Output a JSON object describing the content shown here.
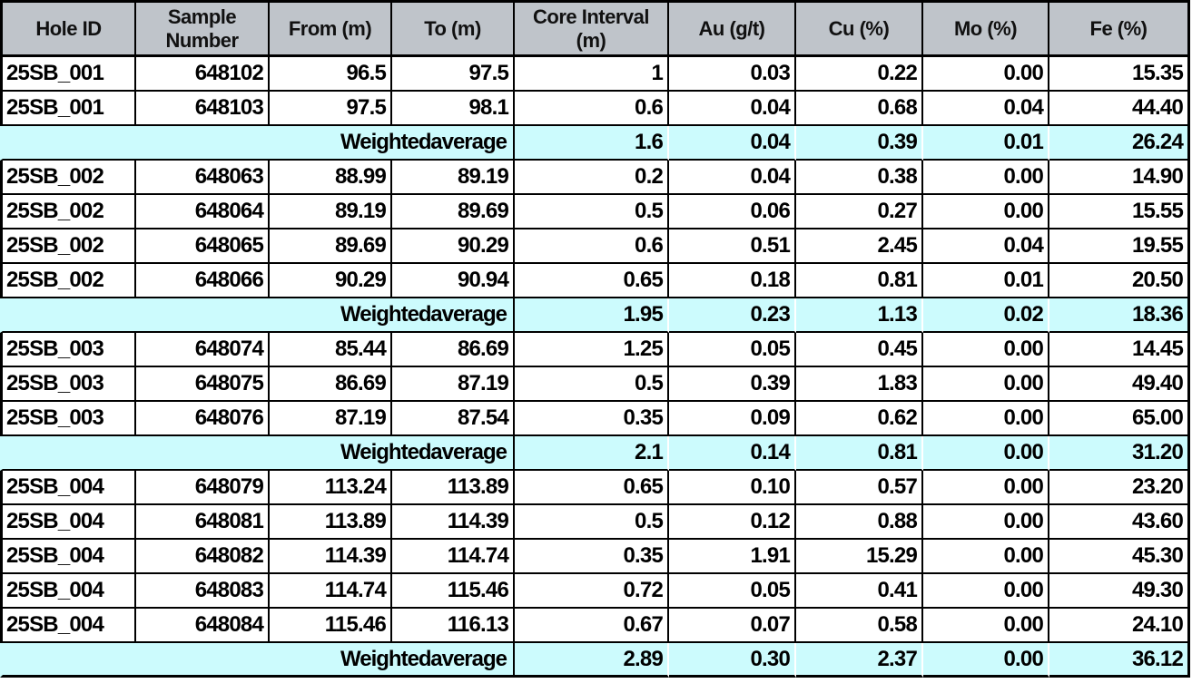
{
  "table": {
    "columns": [
      "Hole ID",
      "Sample\nNumber",
      "From (m)",
      "To (m)",
      "Core Interval\n(m)",
      "Au (g/t)",
      "Cu (%)",
      "Mo (%)",
      "Fe (%)"
    ],
    "weighted_average_label": "Weighted average",
    "sections": [
      {
        "hole_id": "25SB_001",
        "rows": [
          [
            "25SB_001",
            "648102",
            "96.5",
            "97.5",
            "1",
            "0.03",
            "0.22",
            "0.00",
            "15.35"
          ],
          [
            "25SB_001",
            "648103",
            "97.5",
            "98.1",
            "0.6",
            "0.04",
            "0.68",
            "0.04",
            "44.40"
          ]
        ],
        "weighted_average": [
          "1.6",
          "0.04",
          "0.39",
          "0.01",
          "26.24"
        ]
      },
      {
        "hole_id": "25SB_002",
        "rows": [
          [
            "25SB_002",
            "648063",
            "88.99",
            "89.19",
            "0.2",
            "0.04",
            "0.38",
            "0.00",
            "14.90"
          ],
          [
            "25SB_002",
            "648064",
            "89.19",
            "89.69",
            "0.5",
            "0.06",
            "0.27",
            "0.00",
            "15.55"
          ],
          [
            "25SB_002",
            "648065",
            "89.69",
            "90.29",
            "0.6",
            "0.51",
            "2.45",
            "0.04",
            "19.55"
          ],
          [
            "25SB_002",
            "648066",
            "90.29",
            "90.94",
            "0.65",
            "0.18",
            "0.81",
            "0.01",
            "20.50"
          ]
        ],
        "weighted_average": [
          "1.95",
          "0.23",
          "1.13",
          "0.02",
          "18.36"
        ]
      },
      {
        "hole_id": "25SB_003",
        "rows": [
          [
            "25SB_003",
            "648074",
            "85.44",
            "86.69",
            "1.25",
            "0.05",
            "0.45",
            "0.00",
            "14.45"
          ],
          [
            "25SB_003",
            "648075",
            "86.69",
            "87.19",
            "0.5",
            "0.39",
            "1.83",
            "0.00",
            "49.40"
          ],
          [
            "25SB_003",
            "648076",
            "87.19",
            "87.54",
            "0.35",
            "0.09",
            "0.62",
            "0.00",
            "65.00"
          ]
        ],
        "weighted_average": [
          "2.1",
          "0.14",
          "0.81",
          "0.00",
          "31.20"
        ]
      },
      {
        "hole_id": "25SB_004",
        "rows": [
          [
            "25SB_004",
            "648079",
            "113.24",
            "113.89",
            "0.65",
            "0.10",
            "0.57",
            "0.00",
            "23.20"
          ],
          [
            "25SB_004",
            "648081",
            "113.89",
            "114.39",
            "0.5",
            "0.12",
            "0.88",
            "0.00",
            "43.60"
          ],
          [
            "25SB_004",
            "648082",
            "114.39",
            "114.74",
            "0.35",
            "1.91",
            "15.29",
            "0.00",
            "45.30"
          ],
          [
            "25SB_004",
            "648083",
            "114.74",
            "115.46",
            "0.72",
            "0.05",
            "0.41",
            "0.00",
            "49.30"
          ],
          [
            "25SB_004",
            "648084",
            "115.46",
            "116.13",
            "0.67",
            "0.07",
            "0.58",
            "0.00",
            "24.10"
          ]
        ],
        "weighted_average": [
          "2.89",
          "0.30",
          "2.37",
          "0.00",
          "36.12"
        ]
      }
    ],
    "colors": {
      "header_bg": "#BFC4CA",
      "average_row_bg": "#CCFBFD",
      "border": "#000000",
      "row_bg": "#FFFFFF"
    }
  }
}
